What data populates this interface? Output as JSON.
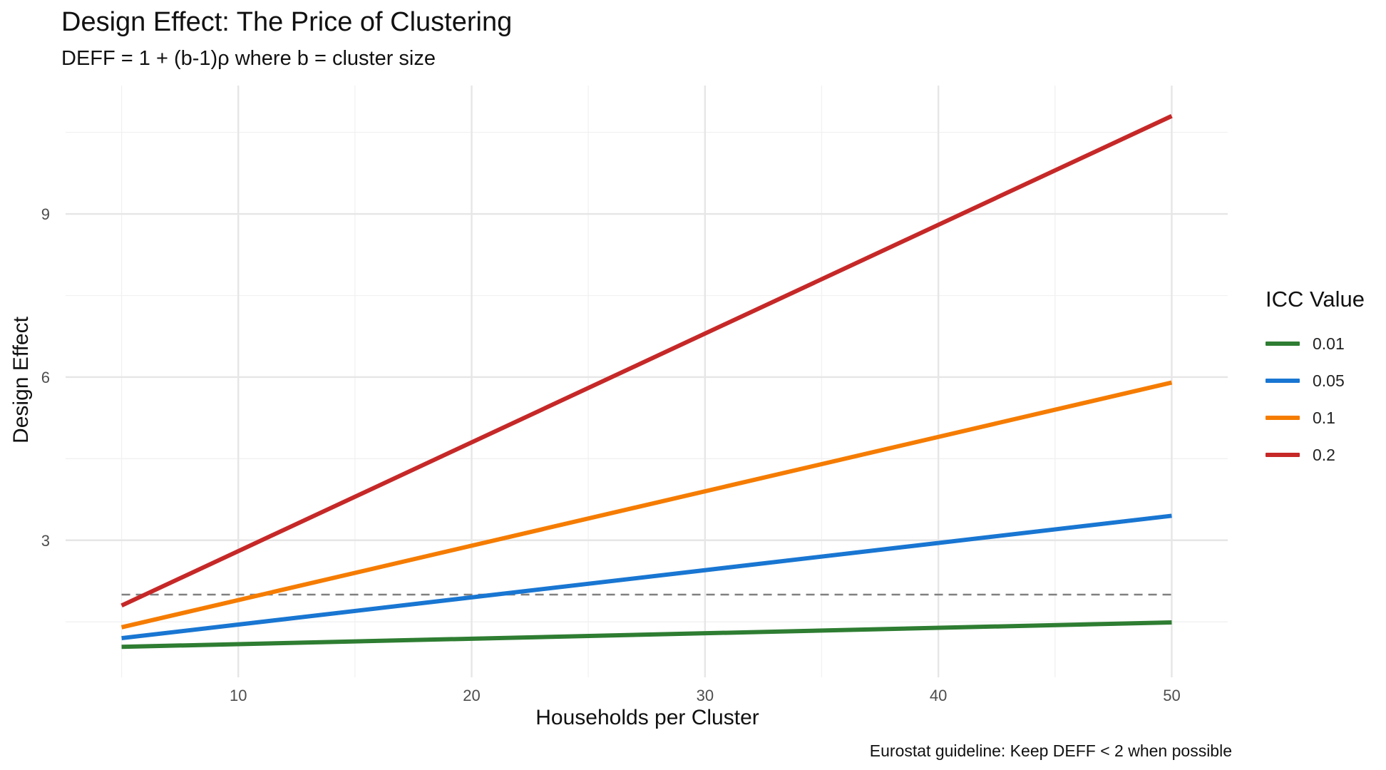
{
  "chart_data": {
    "type": "line",
    "title": "Design Effect: The Price of Clustering",
    "subtitle": "DEFF = 1 + (b-1)ρ where b = cluster size",
    "xlabel": "Households per Cluster",
    "ylabel": "Design Effect",
    "caption": "Eurostat guideline: Keep DEFF < 2 when possible",
    "xlim": [
      2.6,
      52.4
    ],
    "ylim": [
      0.48,
      11.36
    ],
    "xticks": [
      10,
      20,
      30,
      40,
      50
    ],
    "yticks": [
      3,
      6,
      9
    ],
    "grid": true,
    "legend_title": "ICC Value",
    "legend_position": "right",
    "series": [
      {
        "name": "0.01",
        "color": "#2E7D32",
        "x": [
          5,
          50
        ],
        "y": [
          1.04,
          1.49
        ]
      },
      {
        "name": "0.05",
        "color": "#1976D2",
        "x": [
          5,
          50
        ],
        "y": [
          1.2,
          3.45
        ]
      },
      {
        "name": "0.1",
        "color": "#F57C00",
        "x": [
          5,
          50
        ],
        "y": [
          1.4,
          5.9
        ]
      },
      {
        "name": "0.2",
        "color": "#C62828",
        "x": [
          5,
          50
        ],
        "y": [
          1.8,
          10.8
        ]
      }
    ],
    "reference_line": {
      "y": 2,
      "style": "dashed",
      "color": "#808080"
    }
  }
}
